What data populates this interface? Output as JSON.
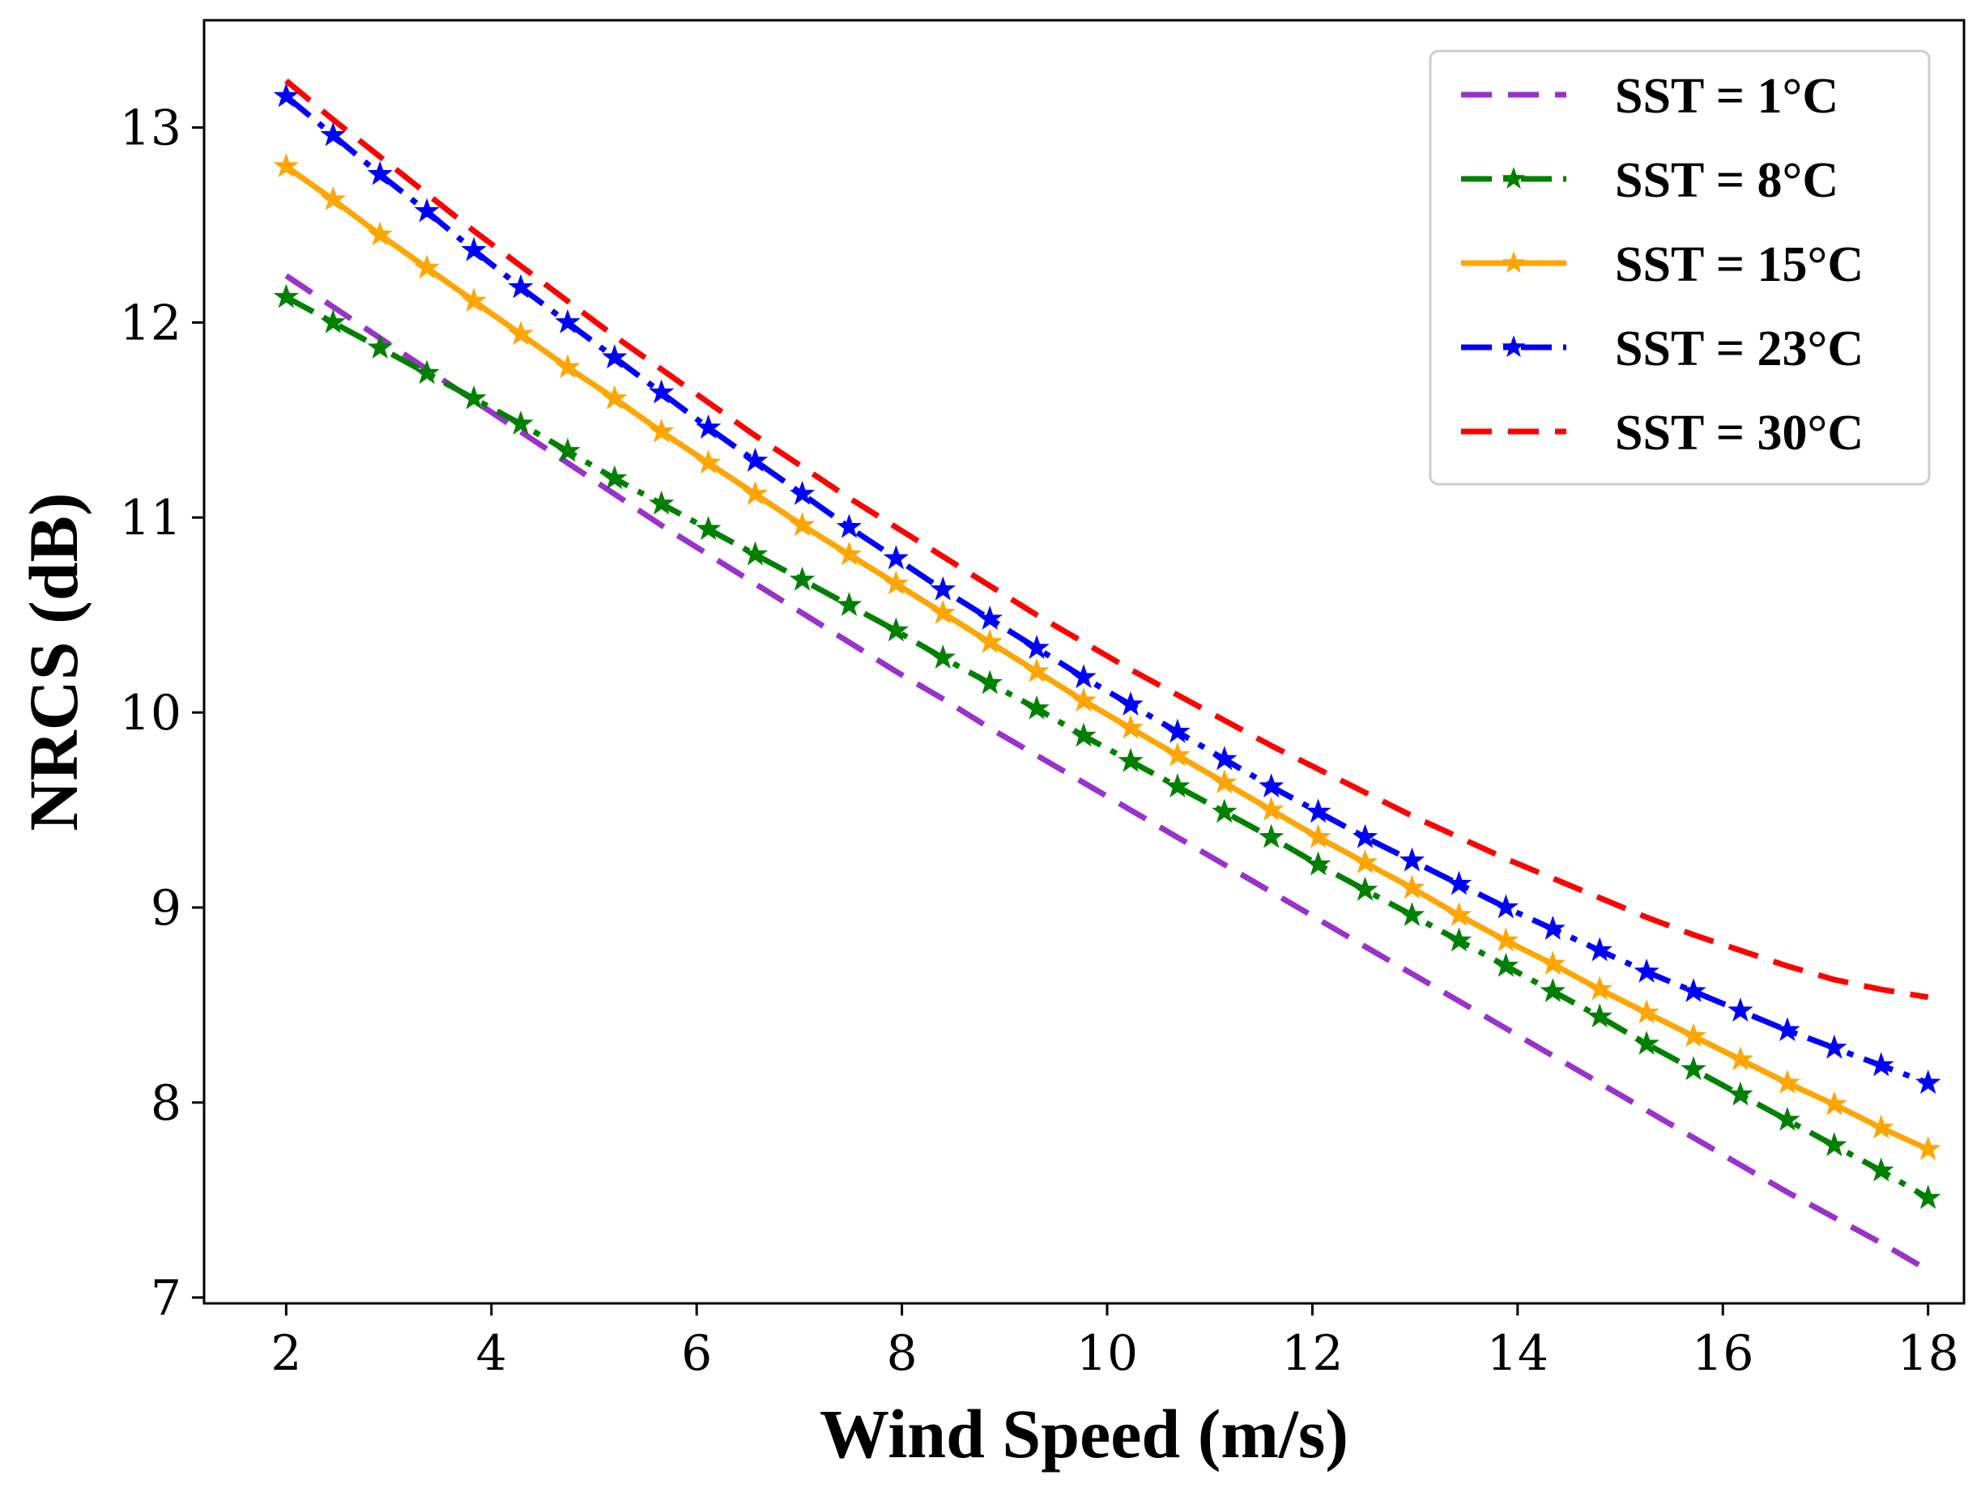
{
  "chart_data": {
    "type": "line",
    "title": "",
    "xlabel": "Wind Speed (m/s)",
    "ylabel": "NRCS (dB)",
    "xlim": [
      1.2,
      18.35
    ],
    "ylim": [
      6.97,
      13.55
    ],
    "xticks": [
      2,
      4,
      6,
      8,
      10,
      12,
      14,
      16,
      18
    ],
    "yticks": [
      7,
      8,
      9,
      10,
      11,
      12,
      13
    ],
    "xtick_labels": [
      "2",
      "4",
      "6",
      "8",
      "10",
      "12",
      "14",
      "16",
      "18"
    ],
    "ytick_labels": [
      "7",
      "8",
      "9",
      "10",
      "11",
      "12",
      "13"
    ],
    "grid": false,
    "legend_position": "top-right",
    "x": [
      2.0,
      2.457,
      2.914,
      3.371,
      3.829,
      4.286,
      4.743,
      5.2,
      5.657,
      6.114,
      6.571,
      7.029,
      7.486,
      7.943,
      8.4,
      8.857,
      9.314,
      9.771,
      10.229,
      10.686,
      11.143,
      11.6,
      12.057,
      12.514,
      12.971,
      13.429,
      13.886,
      14.343,
      14.8,
      15.257,
      15.714,
      16.171,
      16.629,
      17.086,
      17.543,
      18.0
    ],
    "series": [
      {
        "name": "SST = 1°C",
        "color": "#9932cc",
        "dash": "dashed",
        "marker": "none",
        "values": [
          12.24,
          12.08,
          11.92,
          11.76,
          11.6,
          11.44,
          11.28,
          11.12,
          10.96,
          10.81,
          10.66,
          10.51,
          10.36,
          10.21,
          10.07,
          9.92,
          9.78,
          9.64,
          9.5,
          9.36,
          9.22,
          9.08,
          8.94,
          8.8,
          8.66,
          8.52,
          8.38,
          8.24,
          8.1,
          7.96,
          7.82,
          7.68,
          7.54,
          7.41,
          7.28,
          7.14
        ]
      },
      {
        "name": "SST = 8°C",
        "color": "#008000",
        "dash": "dashdot",
        "marker": "star",
        "values": [
          12.13,
          12.0,
          11.87,
          11.74,
          11.61,
          11.48,
          11.34,
          11.2,
          11.07,
          10.94,
          10.81,
          10.68,
          10.55,
          10.42,
          10.28,
          10.15,
          10.02,
          9.88,
          9.75,
          9.62,
          9.49,
          9.36,
          9.22,
          9.09,
          8.96,
          8.83,
          8.7,
          8.57,
          8.44,
          8.3,
          8.17,
          8.04,
          7.91,
          7.78,
          7.65,
          7.51
        ]
      },
      {
        "name": "SST = 15°C",
        "color": "#ffa500",
        "dash": "solid",
        "marker": "star",
        "values": [
          12.8,
          12.63,
          12.45,
          12.28,
          12.11,
          11.94,
          11.77,
          11.61,
          11.44,
          11.28,
          11.12,
          10.96,
          10.81,
          10.66,
          10.51,
          10.36,
          10.21,
          10.06,
          9.92,
          9.78,
          9.64,
          9.5,
          9.36,
          9.23,
          9.1,
          8.96,
          8.83,
          8.71,
          8.58,
          8.46,
          8.34,
          8.22,
          8.1,
          7.99,
          7.87,
          7.76
        ]
      },
      {
        "name": "SST = 23°C",
        "color": "#0000ff",
        "dash": "dashdot",
        "marker": "star",
        "values": [
          13.16,
          12.96,
          12.76,
          12.57,
          12.37,
          12.18,
          12.0,
          11.82,
          11.64,
          11.46,
          11.29,
          11.12,
          10.95,
          10.79,
          10.63,
          10.48,
          10.33,
          10.18,
          10.04,
          9.9,
          9.76,
          9.62,
          9.49,
          9.36,
          9.24,
          9.12,
          9.0,
          8.89,
          8.78,
          8.67,
          8.57,
          8.47,
          8.37,
          8.28,
          8.19,
          8.1
        ]
      },
      {
        "name": "SST = 30°C",
        "color": "#ff0000",
        "dash": "dashed",
        "marker": "none",
        "values": [
          13.24,
          13.04,
          12.85,
          12.66,
          12.47,
          12.29,
          12.11,
          11.93,
          11.76,
          11.59,
          11.42,
          11.26,
          11.1,
          10.95,
          10.8,
          10.65,
          10.5,
          10.36,
          10.22,
          10.09,
          9.96,
          9.83,
          9.71,
          9.59,
          9.47,
          9.36,
          9.25,
          9.15,
          9.05,
          8.95,
          8.86,
          8.78,
          8.7,
          8.63,
          8.58,
          8.54
        ]
      }
    ]
  }
}
